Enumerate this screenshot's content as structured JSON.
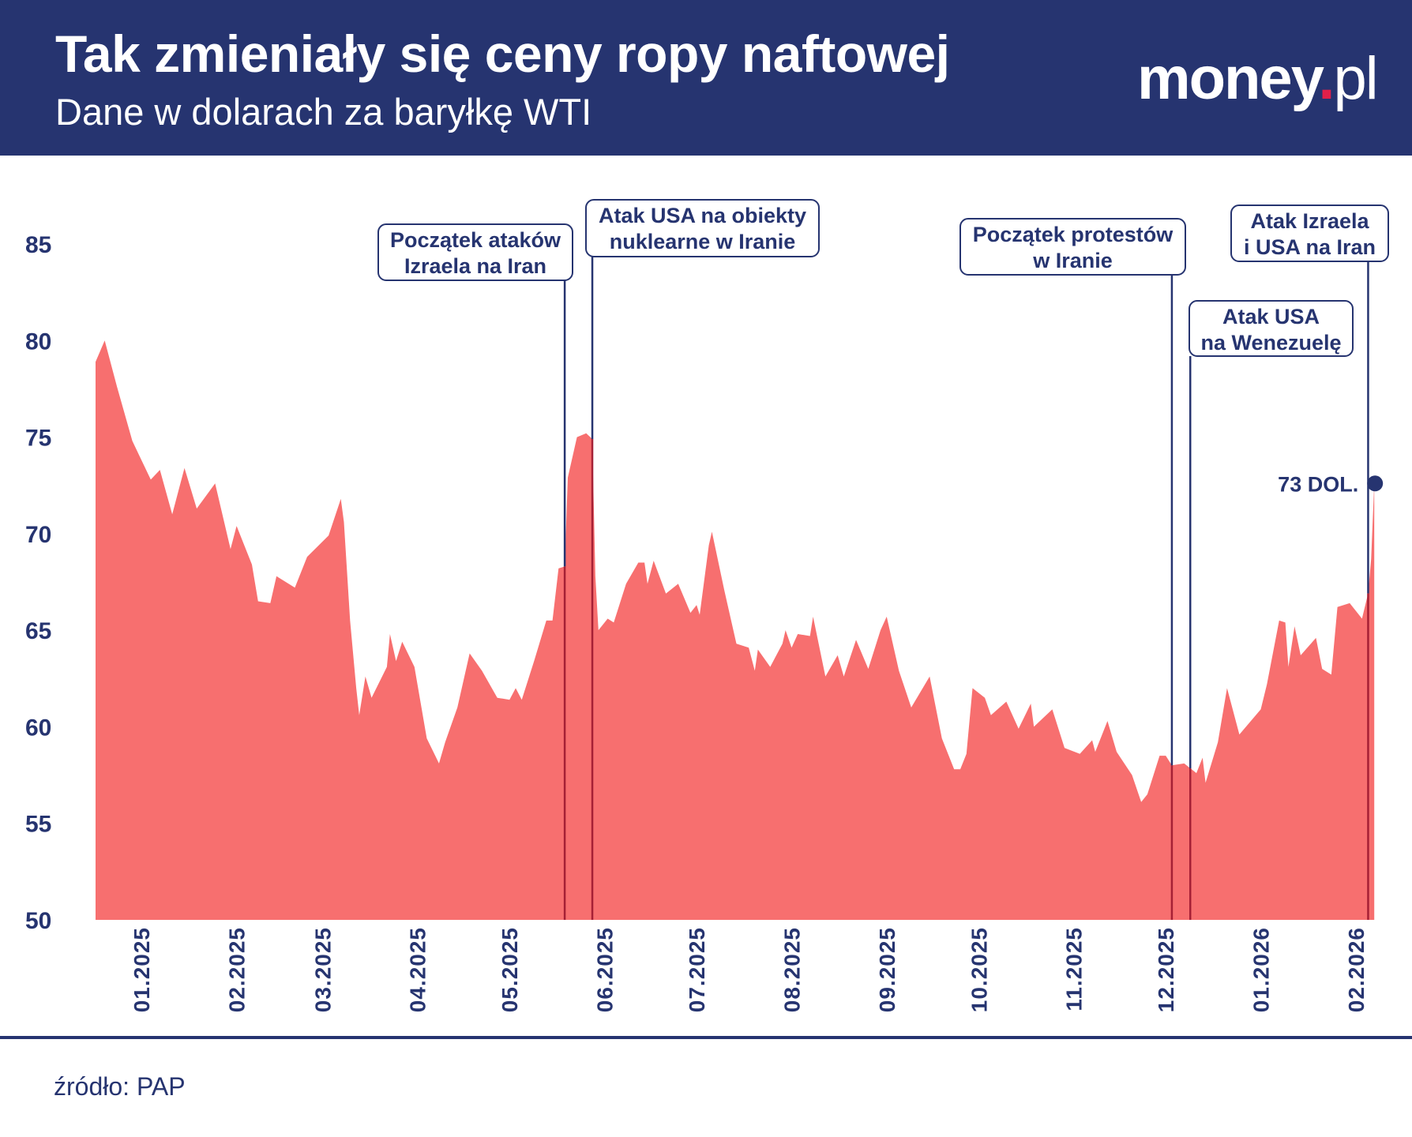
{
  "header": {
    "title": "Tak zmieniały się ceny ropy naftowej",
    "subtitle": "Dane w dolarach za baryłkę WTI",
    "logo": {
      "main": "money",
      "dot": ".",
      "suffix": "pl"
    }
  },
  "footer": {
    "source": "źródło: PAP"
  },
  "colors": {
    "header_bg": "#263470",
    "area": "#f76f6f",
    "text": "#263470",
    "marker_line_inside": "#a52035",
    "logo_dot": "#e0204a"
  },
  "chart_data": {
    "type": "area",
    "title": "Tak zmieniały się ceny ropy naftowej",
    "subtitle": "Dane w dolarach za baryłkę WTI",
    "xlabel": "",
    "ylabel": "",
    "ylim": [
      50,
      85
    ],
    "yticks": [
      50,
      55,
      60,
      65,
      70,
      75,
      80,
      85
    ],
    "xticks": [
      "01.2025",
      "02.2025",
      "03.2025",
      "04.2025",
      "05.2025",
      "06.2025",
      "07.2025",
      "08.2025",
      "09.2025",
      "10.2025",
      "11.2025",
      "12.2025",
      "01.2026",
      "02.2026"
    ],
    "grid": false,
    "legend": "none",
    "series": [
      {
        "points": [
          [
            "2025-01-11",
            78.9
          ],
          [
            "2025-01-14",
            80.0
          ],
          [
            "2025-01-18",
            77.6
          ],
          [
            "2025-01-23",
            74.8
          ],
          [
            "2025-01-26",
            73.8
          ],
          [
            "2025-01-29",
            72.8
          ],
          [
            "2025-02-01",
            73.3
          ],
          [
            "2025-02-05",
            71.0
          ],
          [
            "2025-02-09",
            73.4
          ],
          [
            "2025-02-13",
            71.3
          ],
          [
            "2025-02-19",
            72.6
          ],
          [
            "2025-02-24",
            69.2
          ],
          [
            "2025-02-26",
            70.4
          ],
          [
            "2025-03-03",
            68.4
          ],
          [
            "2025-03-05",
            66.5
          ],
          [
            "2025-03-09",
            66.4
          ],
          [
            "2025-03-11",
            67.8
          ],
          [
            "2025-03-17",
            67.2
          ],
          [
            "2025-03-21",
            68.8
          ],
          [
            "2025-03-28",
            69.9
          ],
          [
            "2025-04-01",
            71.8
          ],
          [
            "2025-04-02",
            70.6
          ],
          [
            "2025-04-04",
            65.5
          ],
          [
            "2025-04-06",
            62.0
          ],
          [
            "2025-04-07",
            60.6
          ],
          [
            "2025-04-09",
            62.6
          ],
          [
            "2025-04-11",
            61.5
          ],
          [
            "2025-04-16",
            63.1
          ],
          [
            "2025-04-17",
            64.8
          ],
          [
            "2025-04-19",
            63.4
          ],
          [
            "2025-04-21",
            64.4
          ],
          [
            "2025-04-25",
            63.1
          ],
          [
            "2025-04-29",
            59.4
          ],
          [
            "2025-05-03",
            58.1
          ],
          [
            "2025-05-05",
            59.2
          ],
          [
            "2025-05-09",
            61.0
          ],
          [
            "2025-05-13",
            63.8
          ],
          [
            "2025-05-17",
            62.9
          ],
          [
            "2025-05-22",
            61.5
          ],
          [
            "2025-05-26",
            61.4
          ],
          [
            "2025-05-28",
            62.0
          ],
          [
            "2025-05-30",
            61.4
          ],
          [
            "2025-06-03",
            63.4
          ],
          [
            "2025-06-07",
            65.5
          ],
          [
            "2025-06-09",
            65.5
          ],
          [
            "2025-06-11",
            68.2
          ],
          [
            "2025-06-13",
            68.3
          ],
          [
            "2025-06-14",
            72.9
          ],
          [
            "2025-06-17",
            75.0
          ],
          [
            "2025-06-20",
            75.2
          ],
          [
            "2025-06-22",
            74.9
          ],
          [
            "2025-06-23",
            67.8
          ],
          [
            "2025-06-24",
            65.0
          ],
          [
            "2025-06-27",
            65.6
          ],
          [
            "2025-06-29",
            65.4
          ],
          [
            "2025-07-03",
            67.4
          ],
          [
            "2025-07-07",
            68.5
          ],
          [
            "2025-07-09",
            68.5
          ],
          [
            "2025-07-10",
            67.4
          ],
          [
            "2025-07-12",
            68.6
          ],
          [
            "2025-07-16",
            66.9
          ],
          [
            "2025-07-20",
            67.4
          ],
          [
            "2025-07-24",
            65.9
          ],
          [
            "2025-07-26",
            66.3
          ],
          [
            "2025-07-27",
            65.8
          ],
          [
            "2025-07-30",
            69.4
          ],
          [
            "2025-07-31",
            70.1
          ],
          [
            "2025-08-04",
            67.1
          ],
          [
            "2025-08-08",
            64.3
          ],
          [
            "2025-08-12",
            64.1
          ],
          [
            "2025-08-14",
            62.9
          ],
          [
            "2025-08-15",
            64.0
          ],
          [
            "2025-08-19",
            63.1
          ],
          [
            "2025-08-23",
            64.3
          ],
          [
            "2025-08-24",
            65.0
          ],
          [
            "2025-08-26",
            64.1
          ],
          [
            "2025-08-28",
            64.8
          ],
          [
            "2025-09-01",
            64.7
          ],
          [
            "2025-09-02",
            65.7
          ],
          [
            "2025-09-06",
            62.6
          ],
          [
            "2025-09-10",
            63.7
          ],
          [
            "2025-09-12",
            62.6
          ],
          [
            "2025-09-16",
            64.5
          ],
          [
            "2025-09-20",
            63.0
          ],
          [
            "2025-09-24",
            65.0
          ],
          [
            "2025-09-26",
            65.7
          ],
          [
            "2025-09-30",
            62.9
          ],
          [
            "2025-10-04",
            61.0
          ],
          [
            "2025-10-10",
            62.6
          ],
          [
            "2025-10-14",
            59.4
          ],
          [
            "2025-10-18",
            57.8
          ],
          [
            "2025-10-20",
            57.8
          ],
          [
            "2025-10-22",
            58.6
          ],
          [
            "2025-10-24",
            62.0
          ],
          [
            "2025-10-28",
            61.5
          ],
          [
            "2025-10-30",
            60.6
          ],
          [
            "2025-11-04",
            61.3
          ],
          [
            "2025-11-08",
            59.9
          ],
          [
            "2025-11-12",
            61.2
          ],
          [
            "2025-11-13",
            60.0
          ],
          [
            "2025-11-19",
            60.9
          ],
          [
            "2025-11-23",
            58.9
          ],
          [
            "2025-11-28",
            58.6
          ],
          [
            "2025-12-02",
            59.3
          ],
          [
            "2025-12-03",
            58.7
          ],
          [
            "2025-12-07",
            60.3
          ],
          [
            "2025-12-10",
            58.7
          ],
          [
            "2025-12-15",
            57.5
          ],
          [
            "2025-12-18",
            56.1
          ],
          [
            "2025-12-20",
            56.5
          ],
          [
            "2025-12-24",
            58.5
          ],
          [
            "2025-12-26",
            58.5
          ],
          [
            "2025-12-28",
            58.0
          ],
          [
            "2026-01-01",
            58.1
          ],
          [
            "2026-01-05",
            57.6
          ],
          [
            "2026-01-07",
            58.4
          ],
          [
            "2026-01-08",
            57.1
          ],
          [
            "2026-01-12",
            59.2
          ],
          [
            "2026-01-15",
            62.0
          ],
          [
            "2026-01-19",
            59.6
          ],
          [
            "2026-01-26",
            60.9
          ],
          [
            "2026-01-28",
            62.2
          ],
          [
            "2026-02-01",
            65.5
          ],
          [
            "2026-02-03",
            65.4
          ],
          [
            "2026-02-04",
            63.1
          ],
          [
            "2026-02-06",
            65.2
          ],
          [
            "2026-02-08",
            63.7
          ],
          [
            "2026-02-13",
            64.6
          ],
          [
            "2026-02-15",
            63.0
          ],
          [
            "2026-02-18",
            62.7
          ],
          [
            "2026-02-20",
            66.2
          ],
          [
            "2026-02-24",
            66.4
          ],
          [
            "2026-02-28",
            65.6
          ],
          [
            "2026-03-02",
            66.9
          ],
          [
            "2026-03-03",
            68.7
          ],
          [
            "2026-03-04",
            72.6
          ]
        ]
      }
    ],
    "last_value_label": "73 DOL.",
    "annotations": [
      {
        "date": "2025-06-13",
        "lines": [
          "Początek ataków",
          "Izraela na Iran"
        ]
      },
      {
        "date": "2025-06-22",
        "lines": [
          "Atak USA na obiekty",
          "nuklearne w Iranie"
        ]
      },
      {
        "date": "2025-12-28",
        "lines": [
          "Początek protestów",
          "w Iranie"
        ]
      },
      {
        "date": "2026-01-03",
        "lines": [
          "Atak USA",
          "na Wenezuelę"
        ]
      },
      {
        "date": "2026-03-02",
        "lines": [
          "Atak Izraela",
          "i USA na Iran"
        ]
      }
    ]
  }
}
